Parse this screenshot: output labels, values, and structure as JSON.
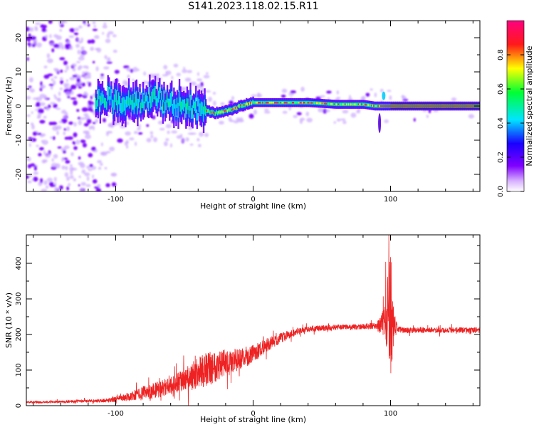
{
  "page": {
    "title": "S141.2023.118.02.15.R11"
  },
  "chart_data": [
    {
      "type": "heatmap",
      "xlabel": "Height of straight line (km)",
      "ylabel": "Frequency (Hz)",
      "xlim": [
        -165,
        165
      ],
      "ylim": [
        -25,
        25
      ],
      "x_ticks": [
        -100,
        0,
        100
      ],
      "y_ticks": [
        -20,
        -10,
        0,
        10,
        20
      ],
      "grid": false,
      "colorbar": {
        "label": "Normalized spectral amplitude",
        "range": [
          0,
          1
        ],
        "ticks": [
          0.0,
          0.2,
          0.4,
          0.6,
          0.8
        ],
        "tick_labels": [
          "0.0",
          "0.2",
          "0.4",
          "0.6",
          "0.8"
        ],
        "colors": [
          "#ffffff",
          "#d9b3ff",
          "#8000ff",
          "#1a00ff",
          "#00e5ff",
          "#00ff33",
          "#ffff00",
          "#ff1a1a",
          "#ff0080"
        ]
      },
      "ridge": {
        "x": [
          -110,
          -90,
          -70,
          -50,
          -38,
          -30,
          -25,
          -20,
          -15,
          -10,
          -5,
          0,
          10,
          20,
          40,
          60,
          80,
          88,
          95,
          100,
          120,
          140,
          165
        ],
        "y": [
          2,
          1,
          2,
          0,
          -1,
          -2,
          -2,
          -1.5,
          -1,
          0,
          0.5,
          1,
          1,
          1,
          1,
          0.5,
          0.5,
          0,
          0,
          0,
          0,
          0,
          0
        ]
      }
    },
    {
      "type": "line",
      "xlabel": "Height of straight line (km)",
      "ylabel": "SNR (10 * v/v)",
      "xlim": [
        -165,
        165
      ],
      "ylim": [
        0,
        480
      ],
      "x_ticks": [
        -100,
        0,
        100
      ],
      "y_ticks": [
        0,
        100,
        200,
        300,
        400
      ],
      "grid": false,
      "series": [
        {
          "color": "#ee2222",
          "x": [
            -165,
            -150,
            -130,
            -110,
            -100,
            -90,
            -80,
            -70,
            -60,
            -50,
            -40,
            -30,
            -20,
            -10,
            0,
            10,
            20,
            30,
            40,
            60,
            80,
            90,
            95,
            98,
            100,
            102,
            105,
            110,
            130,
            150,
            165
          ],
          "y": [
            10,
            10,
            12,
            14,
            18,
            25,
            35,
            45,
            55,
            70,
            90,
            110,
            120,
            130,
            145,
            170,
            190,
            205,
            215,
            220,
            222,
            225,
            230,
            250,
            260,
            225,
            215,
            212,
            212,
            212,
            212
          ],
          "noise": [
            3,
            3,
            4,
            5,
            8,
            12,
            20,
            25,
            25,
            35,
            45,
            50,
            40,
            30,
            25,
            20,
            15,
            10,
            8,
            8,
            8,
            10,
            40,
            120,
            200,
            60,
            10,
            8,
            8,
            8,
            8
          ]
        }
      ]
    }
  ]
}
